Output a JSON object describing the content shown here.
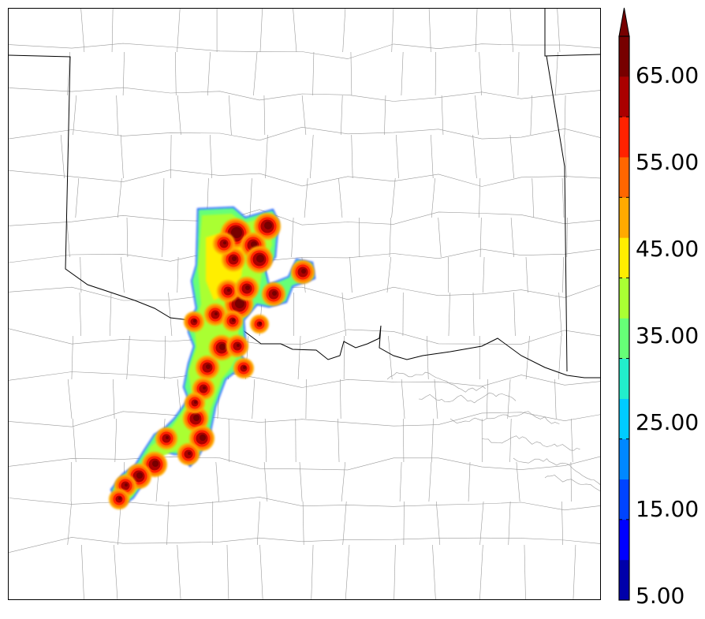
{
  "colorbar": {
    "tick_labels": [
      "5.00",
      "15.00",
      "25.00",
      "35.00",
      "45.00",
      "55.00",
      "65.00"
    ],
    "levels": [
      5,
      10,
      15,
      20,
      25,
      30,
      35,
      40,
      45,
      50,
      55,
      60,
      65,
      70
    ],
    "colors": [
      "#0000aa",
      "#0000ff",
      "#0044ff",
      "#0088ff",
      "#00ccff",
      "#22eecc",
      "#66ff77",
      "#aaff33",
      "#ffee00",
      "#ffaa00",
      "#ff6600",
      "#ff2200",
      "#aa0000",
      "#770000"
    ],
    "extend": "max"
  },
  "colors": {
    "state_border": "#000000",
    "county_border": "#999999",
    "frame": "#000000"
  }
}
